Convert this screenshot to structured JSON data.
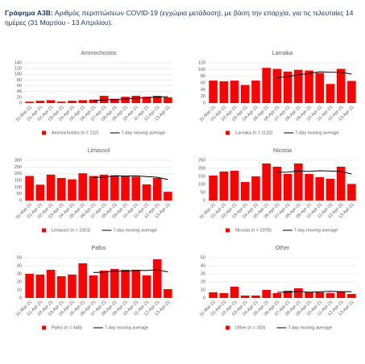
{
  "figure_label": "Γράφημα Α3Β:",
  "title": "Αριθμός περιπτώσεων COVID-19 (εγχώρια μετάδοση), με βάση την επαρχία, για τις τελευταίες 14 ημέρες (31 Μαρτίου - 13 Απριλίου).",
  "chart_data": [
    {
      "type": "bar",
      "title": "Ammochostos",
      "categories": [
        "31-Mar-21",
        "01-Apr-21",
        "02-Apr-21",
        "03-Apr-21",
        "04-Apr-21",
        "05-Apr-21",
        "06-Apr-21",
        "07-Apr-21",
        "08-Apr-21",
        "09-Apr-21",
        "10-Apr-21",
        "11-Apr-21",
        "12-Apr-21",
        "13-Apr-21"
      ],
      "series": [
        {
          "name": "Ammochostos (n = 212)",
          "color": "#ff0000",
          "values": [
            5,
            8,
            10,
            5,
            8,
            10,
            12,
            25,
            15,
            22,
            25,
            22,
            25,
            20
          ]
        },
        {
          "name": "7-day moving average",
          "color": "#000000",
          "type": "line",
          "values": [
            null,
            null,
            null,
            null,
            null,
            null,
            8.3,
            11.1,
            12.1,
            13.9,
            16.7,
            18.7,
            20.9,
            22
          ]
        }
      ],
      "ylim": [
        0,
        140
      ],
      "yticks": [
        0,
        20,
        40,
        60,
        80,
        100,
        120,
        140
      ],
      "grid": true
    },
    {
      "type": "bar",
      "title": "Larnaka",
      "categories": [
        "31-Mar-21",
        "01-Apr-21",
        "02-Apr-21",
        "03-Apr-21",
        "04-Apr-21",
        "05-Apr-21",
        "06-Apr-21",
        "07-Apr-21",
        "08-Apr-21",
        "09-Apr-21",
        "10-Apr-21",
        "11-Apr-21",
        "12-Apr-21",
        "13-Apr-21"
      ],
      "series": [
        {
          "name": "Larnaka (n = 1132)",
          "color": "#ff0000",
          "values": [
            67,
            65,
            67,
            54,
            67,
            105,
            102,
            94,
            99,
            97,
            90,
            57,
            102,
            66
          ]
        },
        {
          "name": "7-day moving average",
          "color": "#000000",
          "type": "line",
          "values": [
            null,
            null,
            null,
            null,
            null,
            null,
            75.3,
            79.1,
            84,
            88.3,
            93.4,
            92,
            91.6,
            86.4
          ]
        }
      ],
      "ylim": [
        0,
        120
      ],
      "yticks": [
        0,
        20,
        40,
        60,
        80,
        100,
        120
      ],
      "grid": true
    },
    {
      "type": "bar",
      "title": "Limassol",
      "categories": [
        "31-Mar-21",
        "01-Apr-21",
        "02-Apr-21",
        "03-Apr-21",
        "04-Apr-21",
        "05-Apr-21",
        "06-Apr-21",
        "07-Apr-21",
        "08-Apr-21",
        "09-Apr-21",
        "10-Apr-21",
        "11-Apr-21",
        "12-Apr-21",
        "13-Apr-21"
      ],
      "series": [
        {
          "name": "Limassol (n = 2301)",
          "color": "#ff0000",
          "values": [
            183,
            118,
            193,
            168,
            158,
            203,
            183,
            193,
            188,
            183,
            178,
            120,
            168,
            65
          ]
        },
        {
          "name": "7-day moving average",
          "color": "#000000",
          "type": "line",
          "values": [
            null,
            null,
            null,
            null,
            null,
            null,
            172.3,
            173.7,
            183.7,
            182.3,
            183.7,
            178.3,
            173.3,
            156.4
          ]
        }
      ],
      "ylim": [
        0,
        300
      ],
      "yticks": [
        0,
        50,
        100,
        150,
        200,
        250,
        300
      ],
      "grid": true
    },
    {
      "type": "bar",
      "title": "Nicosia",
      "categories": [
        "31-Mar-21",
        "01-Apr-21",
        "02-Apr-21",
        "03-Apr-21",
        "04-Apr-21",
        "05-Apr-21",
        "06-Apr-21",
        "07-Apr-21",
        "08-Apr-21",
        "09-Apr-21",
        "10-Apr-21",
        "11-Apr-21",
        "12-Apr-21",
        "13-Apr-21"
      ],
      "series": [
        {
          "name": "Nicosia (n = 2378)",
          "color": "#ff0000",
          "values": [
            155,
            180,
            185,
            115,
            150,
            230,
            210,
            165,
            230,
            165,
            145,
            135,
            210,
            103
          ]
        },
        {
          "name": "7-day moving average",
          "color": "#000000",
          "type": "line",
          "values": [
            null,
            null,
            null,
            null,
            null,
            null,
            175,
            176.4,
            183.6,
            180.7,
            185,
            182.9,
            180,
            164.7
          ]
        }
      ],
      "ylim": [
        0,
        250
      ],
      "yticks": [
        0,
        50,
        100,
        150,
        200,
        250
      ],
      "grid": true
    },
    {
      "type": "bar",
      "title": "Pafos",
      "categories": [
        "31-Mar-21",
        "01-Apr-21",
        "02-Apr-21",
        "03-Apr-21",
        "04-Apr-21",
        "05-Apr-21",
        "06-Apr-21",
        "07-Apr-21",
        "08-Apr-21",
        "09-Apr-21",
        "10-Apr-21",
        "11-Apr-21",
        "12-Apr-21",
        "13-Apr-21"
      ],
      "series": [
        {
          "name": "Pafos (n = 448)",
          "color": "#ff0000",
          "values": [
            30,
            29,
            35,
            27,
            29,
            43,
            28,
            34,
            36,
            35,
            35,
            28,
            48,
            11
          ]
        },
        {
          "name": "7-day moving average",
          "color": "#000000",
          "type": "line",
          "values": [
            null,
            null,
            null,
            null,
            null,
            null,
            31.6,
            32.1,
            33.1,
            33.1,
            34.3,
            34.1,
            34.9,
            32.4
          ]
        }
      ],
      "ylim": [
        0,
        50
      ],
      "yticks": [
        0,
        10,
        20,
        30,
        40,
        50
      ],
      "grid": true
    },
    {
      "type": "bar",
      "title": "Other",
      "categories": [
        "31-Mar-21",
        "01-Apr-21",
        "02-Apr-21",
        "03-Apr-21",
        "04-Apr-21",
        "05-Apr-21",
        "06-Apr-21",
        "07-Apr-21",
        "08-Apr-21",
        "09-Apr-21",
        "10-Apr-21",
        "11-Apr-21",
        "12-Apr-21",
        "13-Apr-21"
      ],
      "series": [
        {
          "name": "Other (n = 103)",
          "color": "#ff0000",
          "values": [
            7,
            6,
            14,
            3,
            3,
            10,
            6,
            9,
            12,
            7,
            7,
            6,
            8,
            5
          ]
        },
        {
          "name": "7-day moving average",
          "color": "#000000",
          "type": "line",
          "values": [
            null,
            null,
            null,
            null,
            null,
            null,
            7,
            7.3,
            8.1,
            7.1,
            7.7,
            8.1,
            7.9,
            7.7
          ]
        }
      ],
      "ylim": [
        0,
        50
      ],
      "yticks": [
        0,
        10,
        20,
        30,
        40,
        50
      ],
      "grid": true
    }
  ]
}
